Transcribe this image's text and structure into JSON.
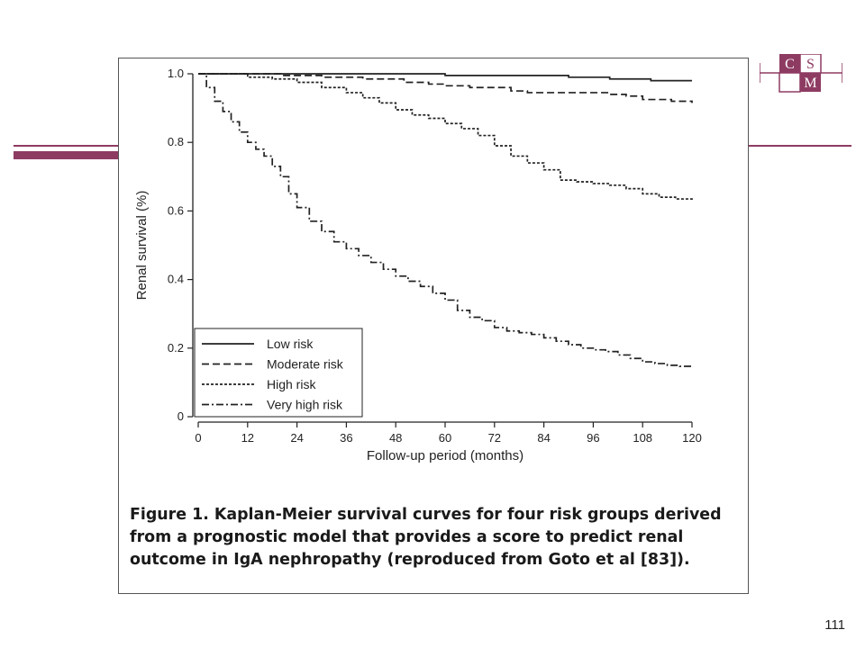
{
  "slide": {
    "page_number": "111",
    "accent_color": "#8e3b62",
    "logo": {
      "letters": [
        "C",
        "S",
        "M"
      ],
      "color": "#8e3b62"
    }
  },
  "figure": {
    "caption": "Figure 1. Kaplan-Meier survival curves for four risk groups derived from a prognostic model that provides a score to predict renal outcome in IgA nephropathy (reproduced from Goto et al [83])."
  },
  "chart_data": {
    "type": "line",
    "step": true,
    "xlabel": "Follow-up period  (months)",
    "ylabel": "Renal survival (%)",
    "xlim": [
      0,
      120
    ],
    "ylim": [
      0,
      1.0
    ],
    "xticks": [
      0,
      12,
      24,
      36,
      48,
      60,
      72,
      84,
      96,
      108,
      120
    ],
    "yticks": [
      0,
      0.2,
      0.4,
      0.6,
      0.8,
      1.0
    ],
    "ytick_labels": [
      "0",
      "0.2",
      "0.4",
      "0.6",
      "0.8",
      "1.0"
    ],
    "grid": false,
    "legend_position": "bottom-left",
    "series": [
      {
        "name": "Low risk",
        "dash": "solid",
        "x": [
          0,
          30,
          60,
          90,
          100,
          110,
          120
        ],
        "y": [
          1.0,
          1.0,
          0.995,
          0.99,
          0.985,
          0.98,
          0.98
        ]
      },
      {
        "name": "Moderate risk",
        "dash": "dashed",
        "x": [
          0,
          10,
          20,
          30,
          40,
          50,
          56,
          60,
          66,
          72,
          76,
          80,
          90,
          100,
          104,
          108,
          115,
          120
        ],
        "y": [
          1.0,
          1.0,
          0.995,
          0.99,
          0.985,
          0.975,
          0.97,
          0.965,
          0.96,
          0.96,
          0.95,
          0.945,
          0.945,
          0.94,
          0.935,
          0.925,
          0.92,
          0.915
        ]
      },
      {
        "name": "High risk",
        "dash": "dotted",
        "x": [
          0,
          12,
          18,
          24,
          30,
          36,
          40,
          44,
          48,
          52,
          56,
          60,
          64,
          68,
          72,
          76,
          80,
          84,
          88,
          92,
          96,
          100,
          104,
          108,
          112,
          116,
          120
        ],
        "y": [
          1.0,
          0.99,
          0.985,
          0.975,
          0.96,
          0.945,
          0.93,
          0.915,
          0.895,
          0.88,
          0.87,
          0.855,
          0.84,
          0.82,
          0.79,
          0.76,
          0.74,
          0.72,
          0.69,
          0.685,
          0.68,
          0.675,
          0.665,
          0.65,
          0.64,
          0.635,
          0.63
        ]
      },
      {
        "name": "Very high risk",
        "dash": "dashdot",
        "x": [
          0,
          2,
          4,
          6,
          8,
          10,
          12,
          14,
          16,
          18,
          20,
          22,
          24,
          27,
          30,
          33,
          36,
          39,
          42,
          45,
          48,
          51,
          54,
          57,
          60,
          63,
          66,
          69,
          72,
          75,
          78,
          81,
          84,
          87,
          90,
          93,
          96,
          99,
          102,
          105,
          108,
          111,
          114,
          117,
          120
        ],
        "y": [
          1.0,
          0.96,
          0.92,
          0.89,
          0.86,
          0.83,
          0.8,
          0.78,
          0.76,
          0.73,
          0.7,
          0.65,
          0.61,
          0.57,
          0.54,
          0.51,
          0.49,
          0.47,
          0.45,
          0.43,
          0.41,
          0.395,
          0.38,
          0.36,
          0.34,
          0.31,
          0.29,
          0.28,
          0.26,
          0.25,
          0.245,
          0.24,
          0.23,
          0.22,
          0.21,
          0.2,
          0.195,
          0.19,
          0.18,
          0.17,
          0.16,
          0.155,
          0.15,
          0.147,
          0.145
        ]
      }
    ]
  }
}
